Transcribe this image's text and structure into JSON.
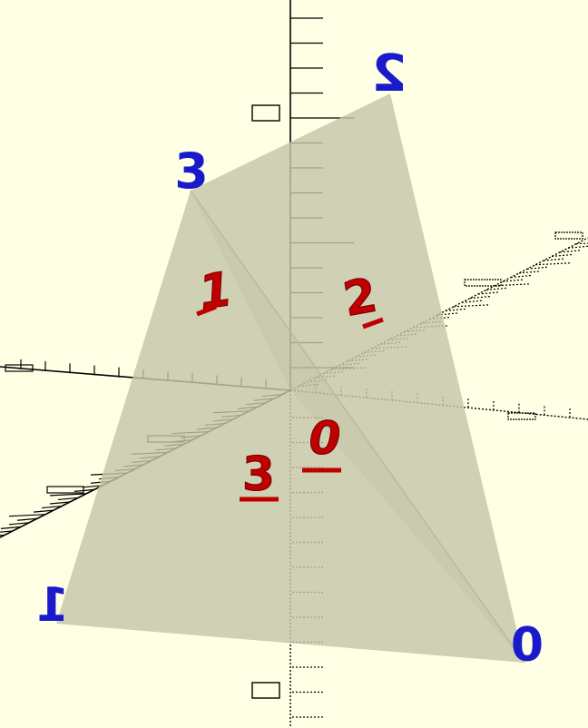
{
  "scene": {
    "background_color": "#ffffe5",
    "face_color": "#c6c6a8",
    "axis_color": "#000000",
    "vertex_label_color": "#1a1acc",
    "face_label_color": "#c00000",
    "vertex_labels": [
      "0",
      "1",
      "2",
      "3"
    ],
    "face_labels": [
      "0",
      "1",
      "2",
      "3"
    ]
  }
}
